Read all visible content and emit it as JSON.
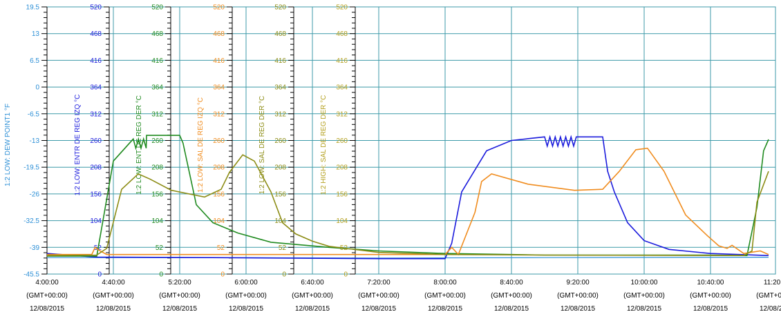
{
  "chart_data": {
    "type": "line",
    "title": "",
    "x_ticks": [
      {
        "time": "4:00:00",
        "tz": "(GMT+00:00)",
        "date": "12/08/2015"
      },
      {
        "time": "4:40:00",
        "tz": "(GMT+00:00)",
        "date": "12/08/2015"
      },
      {
        "time": "5:20:00",
        "tz": "(GMT+00:00)",
        "date": "12/08/2015"
      },
      {
        "time": "6:00:00",
        "tz": "(GMT+00:00)",
        "date": "12/08/2015"
      },
      {
        "time": "6:40:00",
        "tz": "(GMT+00:00)",
        "date": "12/08/2015"
      },
      {
        "time": "7:20:00",
        "tz": "(GMT+00:00)",
        "date": "12/08/2015"
      },
      {
        "time": "8:00:00",
        "tz": "(GMT+00:00)",
        "date": "12/08/2015"
      },
      {
        "time": "8:40:00",
        "tz": "(GMT+00:00)",
        "date": "12/08/2015"
      },
      {
        "time": "9:20:00",
        "tz": "(GMT+00:00)",
        "date": "12/08/2015"
      },
      {
        "time": "10:00:00",
        "tz": "(GMT+00:00)",
        "date": "12/08/2015"
      },
      {
        "time": "10:40:00",
        "tz": "(GMT+00:00)",
        "date": "12/08/2015"
      },
      {
        "time": "11:20:00",
        "tz": "(GMT+00:00)",
        "date": "12/08/2015"
      },
      {
        "time": "1",
        "tz": "(GM",
        "date": "12/"
      }
    ],
    "x_range_minutes_after_4h": [
      0,
      435
    ],
    "grid": true,
    "axes": [
      {
        "label": "1:2 LOW: DEW POINT1 °F",
        "color": "#2c8fd6",
        "ticks": [
          "19.5",
          "13",
          "6.5",
          "0",
          "-6.5",
          "-13",
          "-19.5",
          "-26",
          "-32.5",
          "-39",
          "-45.5"
        ]
      },
      {
        "label": "1:2 LOW: ENTR DE REG IZQ °C",
        "color": "#1a1adc",
        "ticks": [
          "520",
          "468",
          "416",
          "364",
          "312",
          "260",
          "208",
          "156",
          "104",
          "52",
          "0"
        ]
      },
      {
        "label": "1:2 LOW: ENT DE REG DER °C",
        "color": "#1f8a1f",
        "ticks": [
          "520",
          "468",
          "416",
          "364",
          "312",
          "260",
          "208",
          "156",
          "104",
          "52",
          "0"
        ]
      },
      {
        "label": "1:2 LOW: SAL DE REG IZQ °C",
        "color": "#f08c1e",
        "ticks": [
          "520",
          "468",
          "416",
          "364",
          "312",
          "260",
          "208",
          "156",
          "104",
          "52",
          "0"
        ]
      },
      {
        "label": "1:2 LOW: SAL DE REG DER °C",
        "color": "#8c8c14",
        "ticks": [
          "520",
          "468",
          "416",
          "364",
          "312",
          "260",
          "208",
          "156",
          "104",
          "52",
          "0"
        ]
      },
      {
        "label": "1:2 HIGH: SAL DE REG DER °C",
        "color": "#b4a01e",
        "ticks": [
          "520",
          "468",
          "416",
          "364",
          "312",
          "260",
          "208",
          "156",
          "104",
          "52",
          "0"
        ]
      }
    ],
    "series": [
      {
        "name": "1:2 LOW: DEW POINT1 °F",
        "color": "#2c8fd6",
        "points": [
          [
            0,
            -41.5
          ],
          [
            100,
            -41.5
          ],
          [
            200,
            -41.6
          ],
          [
            300,
            -41.5
          ],
          [
            435,
            -41.4
          ]
        ]
      },
      {
        "name": "1:2 LOW: ENTR DE REG IZQ °C",
        "color": "#1a1adc",
        "points": [
          [
            0,
            40
          ],
          [
            30,
            33
          ],
          [
            100,
            32
          ],
          [
            200,
            30
          ],
          [
            240,
            30
          ],
          [
            244,
            60
          ],
          [
            250,
            160
          ],
          [
            265,
            240
          ],
          [
            280,
            260
          ],
          [
            300,
            267
          ],
          [
            320,
            267
          ],
          [
            335,
            267
          ],
          [
            338,
            200
          ],
          [
            342,
            160
          ],
          [
            350,
            100
          ],
          [
            360,
            65
          ],
          [
            375,
            48
          ],
          [
            400,
            40
          ],
          [
            435,
            36
          ]
        ],
        "oscillation": {
          "from": 300,
          "to": 335,
          "cycles": 11,
          "depth": 18
        }
      },
      {
        "name": "1:2 LOW: ENT DE REG DER °C",
        "color": "#1f8a1f",
        "points": [
          [
            0,
            35
          ],
          [
            30,
            35
          ],
          [
            40,
            220
          ],
          [
            52,
            263
          ],
          [
            60,
            270
          ],
          [
            80,
            270
          ],
          [
            82,
            255
          ],
          [
            90,
            135
          ],
          [
            100,
            100
          ],
          [
            115,
            80
          ],
          [
            135,
            62
          ],
          [
            170,
            52
          ],
          [
            200,
            45
          ],
          [
            240,
            40
          ],
          [
            300,
            37
          ],
          [
            400,
            37
          ],
          [
            422,
            36
          ],
          [
            428,
            130
          ],
          [
            432,
            240
          ],
          [
            435,
            262
          ]
        ],
        "oscillation": {
          "from": 52,
          "to": 80,
          "cycles": 9,
          "depth": 18
        }
      },
      {
        "name": "1:2 LOW: SAL DE REG IZQ °C",
        "color": "#f08c1e",
        "points": [
          [
            0,
            38
          ],
          [
            27,
            38
          ],
          [
            29,
            52
          ],
          [
            32,
            45
          ],
          [
            36,
            38
          ],
          [
            130,
            38
          ],
          [
            170,
            38
          ],
          [
            240,
            38
          ],
          [
            244,
            52
          ],
          [
            248,
            38
          ],
          [
            258,
            120
          ],
          [
            262,
            180
          ],
          [
            268,
            195
          ],
          [
            290,
            175
          ],
          [
            318,
            163
          ],
          [
            335,
            165
          ],
          [
            345,
            200
          ],
          [
            355,
            242
          ],
          [
            362,
            245
          ],
          [
            372,
            200
          ],
          [
            385,
            115
          ],
          [
            398,
            75
          ],
          [
            405,
            55
          ],
          [
            410,
            50
          ],
          [
            413,
            56
          ],
          [
            420,
            40
          ],
          [
            430,
            45
          ],
          [
            435,
            38
          ]
        ]
      },
      {
        "name": "1:2 LOW: SAL DE REG DER °C",
        "color": "#8c8c14",
        "points": [
          [
            0,
            36
          ],
          [
            30,
            37
          ],
          [
            36,
            50
          ],
          [
            45,
            165
          ],
          [
            55,
            195
          ],
          [
            62,
            185
          ],
          [
            75,
            163
          ],
          [
            95,
            150
          ],
          [
            105,
            165
          ],
          [
            110,
            198
          ],
          [
            118,
            232
          ],
          [
            125,
            220
          ],
          [
            135,
            160
          ],
          [
            142,
            100
          ],
          [
            150,
            78
          ],
          [
            160,
            64
          ],
          [
            170,
            54
          ],
          [
            200,
            42
          ],
          [
            240,
            38
          ],
          [
            300,
            37
          ],
          [
            420,
            36
          ],
          [
            425,
            45
          ],
          [
            428,
            140
          ],
          [
            435,
            200
          ]
        ]
      }
    ]
  }
}
